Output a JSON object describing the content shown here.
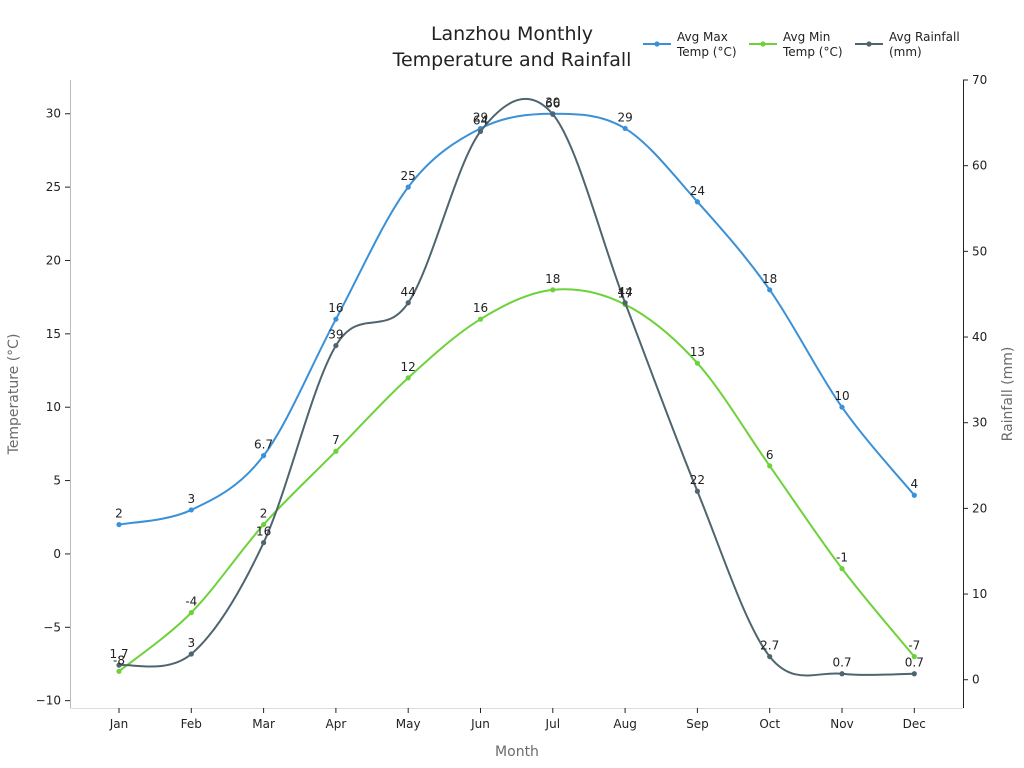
{
  "chart_data": {
    "type": "line",
    "title_lines": [
      "Lanzhou Monthly",
      "Temperature and Rainfall"
    ],
    "xlabel": "Month",
    "ylabel_left": "Temperature (°C)",
    "ylabel_right": "Rainfall (mm)",
    "categories": [
      "Jan",
      "Feb",
      "Mar",
      "Apr",
      "May",
      "Jun",
      "Jul",
      "Aug",
      "Sep",
      "Oct",
      "Nov",
      "Dec"
    ],
    "ylim_left": [
      -10.5,
      32.3
    ],
    "ylim_right": [
      -3.3,
      70
    ],
    "left_ticks": [
      -10,
      -5,
      0,
      5,
      10,
      15,
      20,
      25,
      30
    ],
    "left_tick_labels": [
      "−10",
      "−5",
      "0",
      "5",
      "10",
      "15",
      "20",
      "25",
      "30"
    ],
    "right_ticks": [
      0,
      10,
      20,
      30,
      40,
      50,
      60,
      70
    ],
    "legend_position": "top-right",
    "grid": false,
    "series": [
      {
        "name_lines": [
          "Avg Max",
          "Temp (°C)"
        ],
        "axis": "left",
        "color": "#3b91d8",
        "values": [
          2,
          3,
          6.7,
          16,
          25,
          29,
          30,
          29,
          24,
          18,
          10,
          4
        ],
        "labels": [
          "2",
          "3",
          "6.7",
          "16",
          "25",
          "29",
          "30",
          "29",
          "24",
          "18",
          "10",
          "4"
        ]
      },
      {
        "name_lines": [
          "Avg Min",
          "Temp (°C)"
        ],
        "axis": "left",
        "color": "#6dd23a",
        "values": [
          -8,
          -4,
          2,
          7,
          12,
          16,
          18,
          17,
          13,
          6,
          -1,
          -7
        ],
        "labels": [
          "-8",
          "-4",
          "2",
          "7",
          "12",
          "16",
          "18",
          "17",
          "13",
          "6",
          "-1",
          "-7"
        ]
      },
      {
        "name_lines": [
          "Avg Rainfall",
          "(mm)"
        ],
        "axis": "right",
        "color": "#4e6570",
        "values": [
          1.7,
          3,
          16,
          39,
          44,
          64,
          66,
          44,
          22,
          2.7,
          0.7,
          0.7
        ],
        "labels": [
          "1.7",
          "3",
          "16",
          "39",
          "44",
          "64",
          "66",
          "44",
          "22",
          "2.7",
          "0.7",
          "0.7"
        ]
      }
    ]
  }
}
